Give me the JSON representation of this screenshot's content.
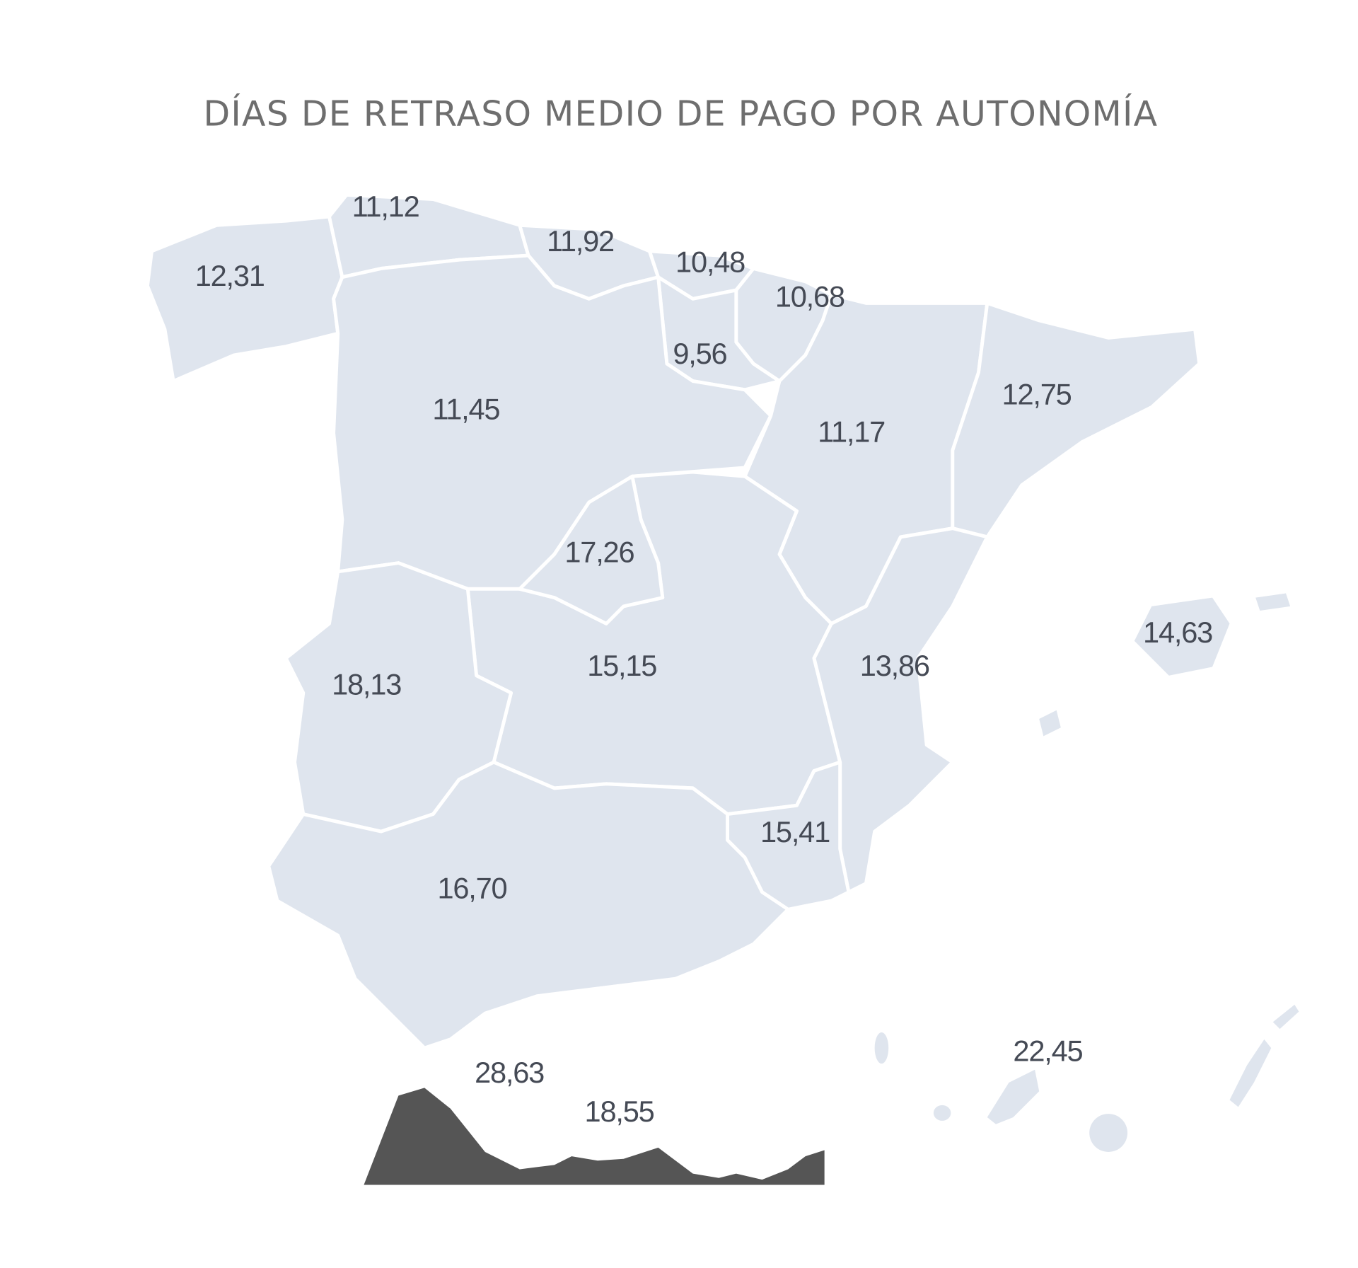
{
  "title": "DÍAS DE RETRASO MEDIO DE PAGO POR AUTONOMÍA",
  "colors": {
    "region_fill": "#dfe5ee",
    "border": "#ffffff",
    "label": "#454a55",
    "silhouette": "#555555"
  },
  "values": {
    "galicia": "12,31",
    "asturias": "11,12",
    "cantabria": "11,92",
    "pais_vasco": "10,48",
    "navarra": "10,68",
    "la_rioja": "9,56",
    "castilla_leon": "11,45",
    "aragon": "11,17",
    "cataluna": "12,75",
    "madrid": "17,26",
    "extremadura": "18,13",
    "castilla_la_mancha": "15,15",
    "valencia": "13,86",
    "baleares": "14,63",
    "murcia": "15,41",
    "andalucia": "16,70",
    "ceuta": "28,63",
    "melilla": "18,55",
    "canarias": "22,45"
  }
}
